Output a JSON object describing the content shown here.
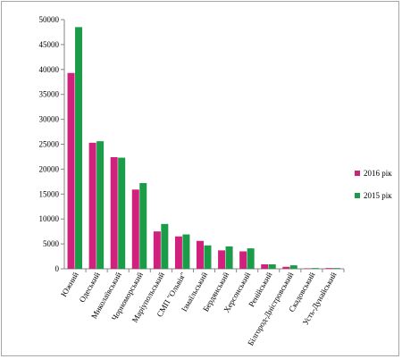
{
  "chart_data": {
    "type": "bar",
    "categories": [
      "Южний",
      "Одеський",
      "Миколаївський",
      "Чорноморський",
      "Маріупольський",
      "СМП \"Ольвія\"",
      "Ізмаїльський",
      "Бердянський",
      "Херсонський",
      "Ренійський",
      "Білгород-Дністровський",
      "Скадовський",
      "Усть-Дунайський"
    ],
    "series": [
      {
        "name": "2016 рік",
        "color": "#d0217d",
        "values": [
          39300,
          25300,
          22400,
          15900,
          7500,
          6500,
          5600,
          3700,
          3500,
          900,
          400,
          100,
          150
        ]
      },
      {
        "name": "2015 рік",
        "color": "#1a9c48",
        "values": [
          48500,
          25600,
          22300,
          17200,
          9000,
          6900,
          4700,
          4500,
          4100,
          900,
          700,
          150,
          150
        ]
      }
    ],
    "ylim": [
      0,
      50000
    ],
    "yticks": [
      0,
      5000,
      10000,
      15000,
      20000,
      25000,
      30000,
      35000,
      40000,
      45000,
      50000
    ],
    "grid": false,
    "legend": "right"
  }
}
